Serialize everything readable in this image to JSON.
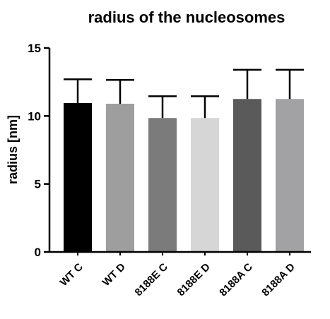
{
  "chart_data": {
    "type": "bar",
    "title": "radius of the nucleosomes",
    "xlabel": "",
    "ylabel": "radius [nm]",
    "categories": [
      "WT C",
      "WT D",
      "8188E C",
      "8188E D",
      "8188A C",
      "8188A D"
    ],
    "values": [
      10.95,
      10.9,
      9.85,
      9.85,
      11.25,
      11.25
    ],
    "error_upper": [
      1.75,
      1.75,
      1.6,
      1.6,
      2.15,
      2.15
    ],
    "bar_colors": [
      "#000000",
      "#9e9e9e",
      "#7b7b7b",
      "#d6d6d6",
      "#5a5a5a",
      "#a2a2a4"
    ],
    "error_color": "#000000",
    "ylim": [
      0,
      15
    ],
    "yticks": [
      0,
      5,
      10,
      15
    ],
    "grid": false,
    "legend": "none"
  }
}
